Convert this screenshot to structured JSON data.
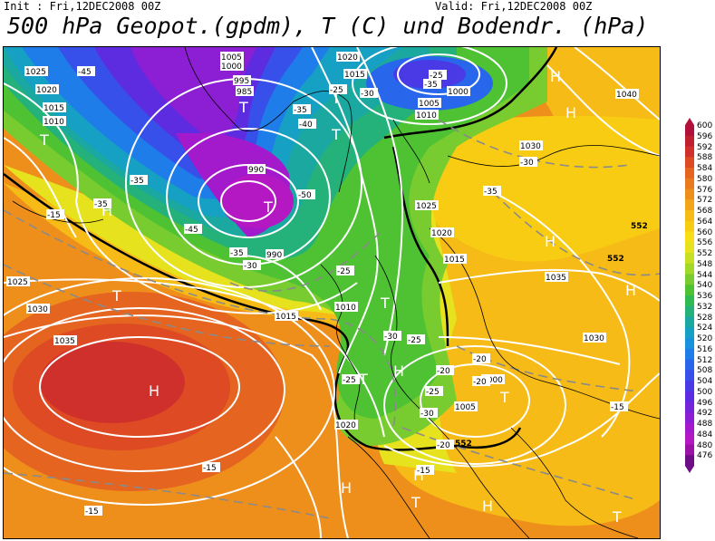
{
  "header": {
    "init": "Init : Fri,12DEC2008 00Z",
    "valid": "Valid: Fri,12DEC2008 00Z",
    "title": "500 hPa Geopot.(gpdm), T (C) und Bodendr. (hPa)"
  },
  "legend": {
    "values": [
      "600",
      "596",
      "592",
      "588",
      "584",
      "580",
      "576",
      "572",
      "568",
      "564",
      "560",
      "556",
      "552",
      "548",
      "544",
      "540",
      "536",
      "532",
      "528",
      "524",
      "520",
      "516",
      "512",
      "508",
      "504",
      "500",
      "496",
      "492",
      "488",
      "484",
      "480",
      "476"
    ],
    "colors": [
      "#b0103a",
      "#c01f30",
      "#d0302c",
      "#dd4a24",
      "#e46420",
      "#ea7a1e",
      "#ee8f1c",
      "#f2a51a",
      "#f6bb16",
      "#f9cc14",
      "#f8de18",
      "#e6e21e",
      "#c8e024",
      "#a2d82a",
      "#78cc30",
      "#4ec232",
      "#30ba52",
      "#24b27a",
      "#1aa8a0",
      "#16a0c4",
      "#1892dc",
      "#1e7de8",
      "#2866ec",
      "#3850ea",
      "#4a3ae6",
      "#5e2ce0",
      "#7424da",
      "#8c1ed4",
      "#a21acc",
      "#b418c2",
      "#9a12a6",
      "#6e0e86"
    ]
  },
  "map": {
    "high_labels": [
      "H",
      "H",
      "H",
      "H",
      "H",
      "H",
      "H",
      "H",
      "H",
      "H"
    ],
    "low_labels": [
      "T",
      "T",
      "T",
      "T",
      "T",
      "T",
      "T",
      "T",
      "T",
      "T",
      "T"
    ],
    "isobar_labels": [
      "1025",
      "1020",
      "1015",
      "1010",
      "1005",
      "1000",
      "995",
      "990",
      "985",
      "1035",
      "1030",
      "1040",
      "1020",
      "1015",
      "1010",
      "1005",
      "1000",
      "1025",
      "1030",
      "1035",
      "1010",
      "1015",
      "1020",
      "1025",
      "1030",
      "1005",
      "1000",
      "990",
      "1020",
      "1015"
    ],
    "temp_labels": [
      "-45",
      "-35",
      "-35",
      "-15",
      "-35",
      "-40",
      "-50",
      "-45",
      "-35",
      "-30",
      "-25",
      "-30",
      "-25",
      "-35",
      "-30",
      "-25",
      "-20",
      "-25",
      "-30",
      "-25",
      "-20",
      "-20",
      "-15",
      "-15",
      "-15",
      "-15",
      "-20",
      "-25",
      "-30",
      "-35"
    ],
    "height_labels": [
      "552",
      "552",
      "552"
    ]
  }
}
